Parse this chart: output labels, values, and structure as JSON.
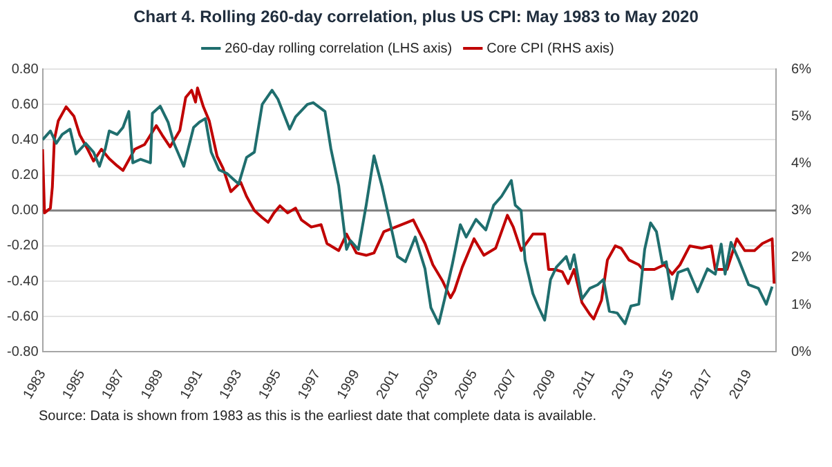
{
  "chart_data": {
    "type": "line",
    "title": "Chart 4. Rolling 260-day correlation, plus US CPI: May 1983 to May 2020",
    "annotations": [
      "Source: Data is shown from 1983 as this is the earliest date that complete data is available."
    ],
    "xlim": [
      1983,
      2020.4
    ],
    "xticks": [
      1983,
      1985,
      1987,
      1989,
      1991,
      1993,
      1995,
      1997,
      1999,
      2001,
      2003,
      2005,
      2007,
      2009,
      2011,
      2013,
      2015,
      2017,
      2019
    ],
    "ylim": [
      -0.8,
      0.8
    ],
    "yticks": [
      {
        "value": -0.8,
        "label": "-0.80"
      },
      {
        "value": -0.6,
        "label": "-0.60"
      },
      {
        "value": -0.4,
        "label": "-0.40"
      },
      {
        "value": -0.2,
        "label": "-0.20"
      },
      {
        "value": 0,
        "label": "0.00"
      },
      {
        "value": 0.2,
        "label": "0.20"
      },
      {
        "value": 0.4,
        "label": "0.40"
      },
      {
        "value": 0.6,
        "label": "0.60"
      },
      {
        "value": 0.8,
        "label": "0.80"
      }
    ],
    "y2lim": [
      0,
      6
    ],
    "y2ticks": [
      {
        "value": 0,
        "label": "0%"
      },
      {
        "value": 1,
        "label": "1%"
      },
      {
        "value": 2,
        "label": "2%"
      },
      {
        "value": 3,
        "label": "3%"
      },
      {
        "value": 4,
        "label": "4%"
      },
      {
        "value": 5,
        "label": "5%"
      },
      {
        "value": 6,
        "label": "6%"
      }
    ],
    "grid": "y",
    "legend": "top",
    "marker": "none",
    "line_style": "solid",
    "ref_lines": [
      {
        "axis": "y",
        "value": 0,
        "color": "#808080"
      }
    ],
    "series": [
      {
        "name": "260-day rolling correlation (LHS axis)",
        "color": "#1f6e6e",
        "x": [
          1983.0,
          1983.4,
          1983.7,
          1984.0,
          1984.4,
          1984.7,
          1985.2,
          1985.6,
          1985.9,
          1986.2,
          1986.4,
          1986.8,
          1987.1,
          1987.4,
          1987.6,
          1988.0,
          1988.5,
          1988.6,
          1989.0,
          1989.4,
          1989.7,
          1990.2,
          1990.7,
          1991.0,
          1991.3,
          1991.6,
          1992.0,
          1992.4,
          1992.7,
          1993.0,
          1993.4,
          1993.8,
          1994.2,
          1994.7,
          1995.0,
          1995.6,
          1995.9,
          1996.5,
          1996.8,
          1997.4,
          1997.7,
          1998.1,
          1998.5,
          1998.7,
          1999.1,
          1999.5,
          1999.9,
          2000.3,
          2000.8,
          2001.1,
          2001.5,
          2002.0,
          2002.5,
          2002.8,
          2003.2,
          2003.5,
          2003.9,
          2004.3,
          2004.6,
          2005.1,
          2005.6,
          2006.0,
          2006.4,
          2006.9,
          2007.1,
          2007.4,
          2007.6,
          2008.0,
          2008.3,
          2008.6,
          2008.9,
          2009.2,
          2009.7,
          2009.9,
          2010.1,
          2010.5,
          2010.9,
          2011.3,
          2011.6,
          2011.9,
          2012.3,
          2012.7,
          2013.0,
          2013.4,
          2013.7,
          2014.0,
          2014.3,
          2014.6,
          2014.8,
          2015.1,
          2015.4,
          2015.9,
          2016.4,
          2016.9,
          2017.3,
          2017.6,
          2017.8,
          2018.1,
          2018.5,
          2019.0,
          2019.5,
          2019.9,
          2020.2
        ],
        "values": [
          0.4,
          0.45,
          0.38,
          0.43,
          0.46,
          0.32,
          0.38,
          0.33,
          0.25,
          0.35,
          0.45,
          0.43,
          0.47,
          0.56,
          0.27,
          0.29,
          0.27,
          0.55,
          0.59,
          0.5,
          0.38,
          0.25,
          0.47,
          0.5,
          0.52,
          0.33,
          0.23,
          0.21,
          0.18,
          0.15,
          0.3,
          0.33,
          0.6,
          0.68,
          0.63,
          0.46,
          0.53,
          0.6,
          0.61,
          0.56,
          0.35,
          0.14,
          -0.22,
          -0.17,
          -0.22,
          0.03,
          0.31,
          0.14,
          -0.11,
          -0.26,
          -0.29,
          -0.15,
          -0.33,
          -0.55,
          -0.64,
          -0.5,
          -0.3,
          -0.08,
          -0.15,
          -0.05,
          -0.11,
          0.03,
          0.08,
          0.17,
          0.03,
          0.0,
          -0.28,
          -0.47,
          -0.55,
          -0.62,
          -0.39,
          -0.32,
          -0.26,
          -0.33,
          -0.25,
          -0.5,
          -0.44,
          -0.42,
          -0.39,
          -0.57,
          -0.58,
          -0.64,
          -0.54,
          -0.53,
          -0.22,
          -0.07,
          -0.12,
          -0.3,
          -0.29,
          -0.5,
          -0.35,
          -0.33,
          -0.46,
          -0.33,
          -0.36,
          -0.19,
          -0.36,
          -0.18,
          -0.28,
          -0.42,
          -0.44,
          -0.53,
          -0.43
        ]
      },
      {
        "name": "Core CPI (RHS axis)",
        "color": "#c00000",
        "axis": "y2",
        "x": [
          1983.0,
          1983.1,
          1983.4,
          1983.5,
          1983.6,
          1983.8,
          1984.2,
          1984.6,
          1984.9,
          1985.3,
          1985.6,
          1986.0,
          1986.4,
          1986.8,
          1987.1,
          1987.3,
          1987.7,
          1988.2,
          1988.8,
          1989.1,
          1989.5,
          1990.0,
          1990.3,
          1990.6,
          1990.8,
          1990.9,
          1991.2,
          1991.5,
          1991.9,
          1992.2,
          1992.6,
          1993.1,
          1993.4,
          1993.8,
          1994.2,
          1994.5,
          1994.8,
          1995.1,
          1995.5,
          1995.9,
          1996.2,
          1996.7,
          1997.2,
          1997.5,
          1998.1,
          1998.5,
          1999.0,
          1999.5,
          1999.9,
          2000.4,
          2001.0,
          2001.6,
          2001.9,
          2002.5,
          2002.9,
          2003.4,
          2003.8,
          2004.0,
          2004.4,
          2005.0,
          2005.5,
          2006.1,
          2006.7,
          2007.0,
          2007.4,
          2008.0,
          2008.6,
          2008.8,
          2009.1,
          2009.5,
          2009.8,
          2010.1,
          2010.5,
          2010.9,
          2011.1,
          2011.5,
          2011.8,
          2012.2,
          2012.5,
          2012.9,
          2013.4,
          2013.6,
          2014.2,
          2014.7,
          2015.1,
          2015.5,
          2016.0,
          2016.6,
          2017.1,
          2017.3,
          2017.9,
          2018.4,
          2018.8,
          2019.3,
          2019.7,
          2020.2,
          2020.3
        ],
        "values": [
          4.3,
          2.95,
          3.05,
          3.5,
          4.5,
          4.9,
          5.2,
          5.0,
          4.6,
          4.3,
          4.05,
          4.3,
          4.1,
          3.95,
          3.85,
          4.0,
          4.3,
          4.4,
          4.8,
          4.6,
          4.35,
          4.7,
          5.4,
          5.55,
          5.3,
          5.6,
          5.2,
          4.9,
          4.15,
          3.9,
          3.4,
          3.6,
          3.3,
          3.0,
          2.85,
          2.75,
          2.95,
          3.1,
          2.95,
          3.05,
          2.8,
          2.65,
          2.7,
          2.3,
          2.15,
          2.5,
          2.1,
          2.05,
          2.1,
          2.55,
          2.65,
          2.75,
          2.8,
          2.3,
          1.85,
          1.5,
          1.15,
          1.3,
          1.8,
          2.4,
          2.05,
          2.2,
          2.9,
          2.65,
          2.15,
          2.5,
          2.5,
          1.75,
          1.75,
          1.7,
          1.45,
          1.75,
          1.05,
          0.8,
          0.7,
          1.1,
          1.95,
          2.25,
          2.2,
          1.95,
          1.85,
          1.75,
          1.75,
          1.85,
          1.65,
          1.85,
          2.25,
          2.2,
          2.25,
          1.75,
          1.75,
          2.4,
          2.15,
          2.15,
          2.3,
          2.4,
          1.45
        ]
      }
    ]
  }
}
